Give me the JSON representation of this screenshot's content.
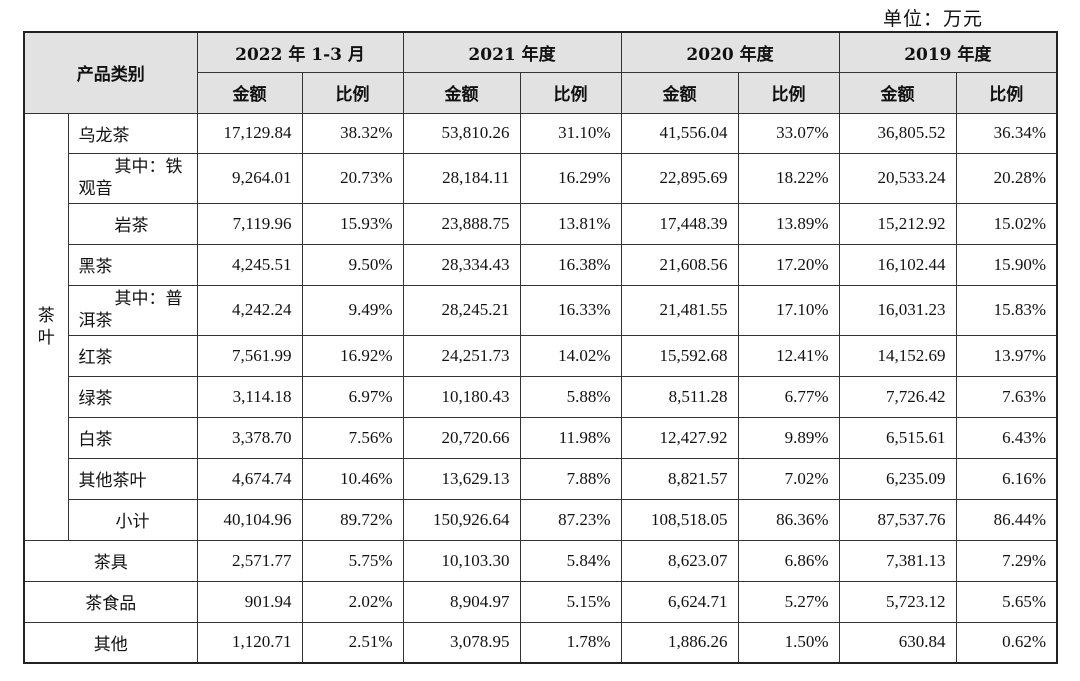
{
  "unit_label": "单位：万元",
  "header": {
    "category": "产品类别",
    "periods": [
      "2022 年 1-3 月",
      "2021 年度",
      "2020 年度",
      "2019 年度"
    ],
    "amount": "金额",
    "ratio": "比例"
  },
  "tea_group": {
    "char1": "茶",
    "char2": "叶"
  },
  "rows": [
    {
      "name": "乌龙茶",
      "values": [
        "17,129.84",
        "38.32%",
        "53,810.26",
        "31.10%",
        "41,556.04",
        "33.07%",
        "36,805.52",
        "36.34%"
      ]
    },
    {
      "name_line1": "其中：铁",
      "name_line2": "观音",
      "values": [
        "9,264.01",
        "20.73%",
        "28,184.11",
        "16.29%",
        "22,895.69",
        "18.22%",
        "20,533.24",
        "20.28%"
      ]
    },
    {
      "name": "岩茶",
      "values": [
        "7,119.96",
        "15.93%",
        "23,888.75",
        "13.81%",
        "17,448.39",
        "13.89%",
        "15,212.92",
        "15.02%"
      ]
    },
    {
      "name": "黑茶",
      "values": [
        "4,245.51",
        "9.50%",
        "28,334.43",
        "16.38%",
        "21,608.56",
        "17.20%",
        "16,102.44",
        "15.90%"
      ]
    },
    {
      "name_line1": "其中：普",
      "name_line2": "洱茶",
      "values": [
        "4,242.24",
        "9.49%",
        "28,245.21",
        "16.33%",
        "21,481.55",
        "17.10%",
        "16,031.23",
        "15.83%"
      ]
    },
    {
      "name": "红茶",
      "values": [
        "7,561.99",
        "16.92%",
        "24,251.73",
        "14.02%",
        "15,592.68",
        "12.41%",
        "14,152.69",
        "13.97%"
      ]
    },
    {
      "name": "绿茶",
      "values": [
        "3,114.18",
        "6.97%",
        "10,180.43",
        "5.88%",
        "8,511.28",
        "6.77%",
        "7,726.42",
        "7.63%"
      ]
    },
    {
      "name": "白茶",
      "values": [
        "3,378.70",
        "7.56%",
        "20,720.66",
        "11.98%",
        "12,427.92",
        "9.89%",
        "6,515.61",
        "6.43%"
      ]
    },
    {
      "name": "其他茶叶",
      "values": [
        "4,674.74",
        "10.46%",
        "13,629.13",
        "7.88%",
        "8,821.57",
        "7.02%",
        "6,235.09",
        "6.16%"
      ]
    },
    {
      "name": "小计",
      "values": [
        "40,104.96",
        "89.72%",
        "150,926.64",
        "87.23%",
        "108,518.05",
        "86.36%",
        "87,537.76",
        "86.44%"
      ]
    }
  ],
  "other_rows": [
    {
      "name": "茶具",
      "values": [
        "2,571.77",
        "5.75%",
        "10,103.30",
        "5.84%",
        "8,623.07",
        "6.86%",
        "7,381.13",
        "7.29%"
      ]
    },
    {
      "name": "茶食品",
      "values": [
        "901.94",
        "2.02%",
        "8,904.97",
        "5.15%",
        "6,624.71",
        "5.27%",
        "5,723.12",
        "5.65%"
      ]
    },
    {
      "name": "其他",
      "values": [
        "1,120.71",
        "2.51%",
        "3,078.95",
        "1.78%",
        "1,886.26",
        "1.50%",
        "630.84",
        "0.62%"
      ]
    }
  ]
}
